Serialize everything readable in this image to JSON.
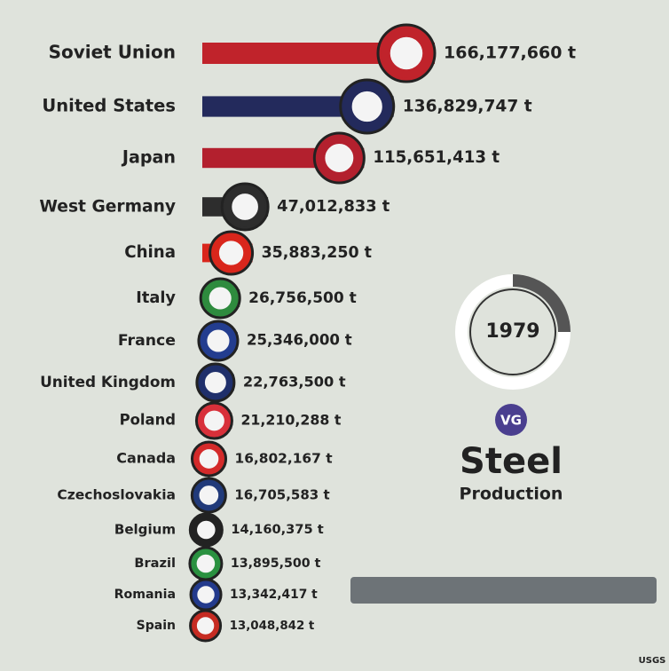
{
  "chart_data": {
    "type": "bar",
    "orientation": "horizontal",
    "categories": [
      "Soviet Union",
      "United States",
      "Japan",
      "West Germany",
      "China",
      "Italy",
      "France",
      "United Kingdom",
      "Poland",
      "Canada",
      "Czechoslovakia",
      "Belgium",
      "Brazil",
      "Romania",
      "Spain"
    ],
    "values": [
      166177660,
      136829747,
      115651413,
      47012833,
      35883250,
      26756500,
      25346000,
      22763500,
      21210288,
      16802167,
      16705583,
      14160375,
      13895500,
      13342417,
      13048842
    ],
    "value_labels": [
      "166,177,660 t",
      "136,829,747 t",
      "115,651,413 t",
      "47,012,833 t",
      "35,883,250 t",
      "26,756,500 t",
      "25,346,000 t",
      "22,763,500 t",
      "21,210,288 t",
      "16,802,167 t",
      "16,705,583 t",
      "14,160,375 t",
      "13,895,500 t",
      "13,342,417 t",
      "13,048,842 t"
    ],
    "colors": [
      "#c0232b",
      "#232a5c",
      "#b3202e",
      "#2d2d2d",
      "#d9261c",
      "#2e8b3e",
      "#233d8f",
      "#1f2f6b",
      "#d8303a",
      "#d42a2a",
      "#213a7a",
      "#222222",
      "#2a9140",
      "#233a8c",
      "#c62b22"
    ],
    "year": "1979"
  },
  "logo": "VG",
  "title": "Steel",
  "subtitle": "Production",
  "source": "USGS"
}
